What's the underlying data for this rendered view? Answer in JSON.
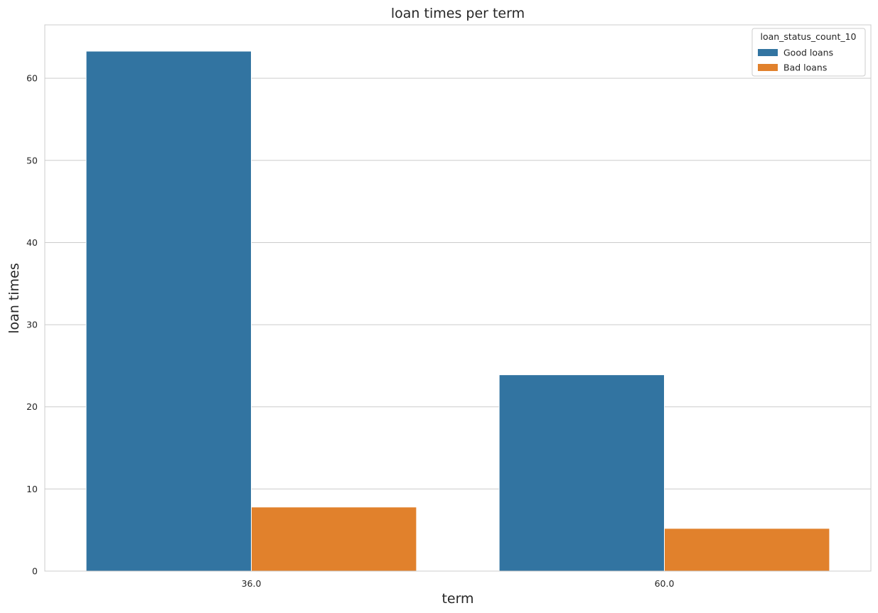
{
  "chart_data": {
    "type": "bar",
    "title": "loan times per term",
    "xlabel": "term",
    "ylabel": "loan times",
    "categories": [
      "36.0",
      "60.0"
    ],
    "series": [
      {
        "name": "Good loans",
        "values": [
          63.3,
          23.9
        ],
        "color": "#3274a1"
      },
      {
        "name": "Bad loans",
        "values": [
          7.8,
          5.2
        ],
        "color": "#e1812c"
      }
    ],
    "ylim": [
      0,
      66.5
    ],
    "yticks": [
      0,
      10,
      20,
      30,
      40,
      50,
      60
    ],
    "grid": true,
    "legend": {
      "title": "loan_status_count_10",
      "placement": "top-right"
    }
  }
}
